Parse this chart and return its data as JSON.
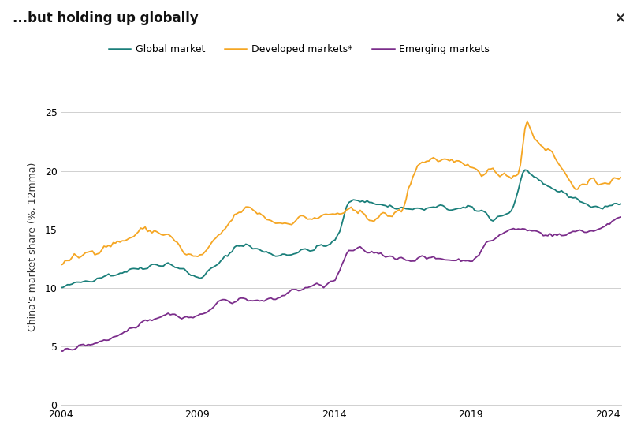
{
  "title": "...but holding up globally",
  "title_fontsize": 12,
  "ylabel": "China's market share (%, 12mma)",
  "ylabel_fontsize": 9,
  "xlim": [
    2004,
    2024.5
  ],
  "ylim": [
    0,
    27
  ],
  "yticks": [
    0,
    5,
    10,
    15,
    20,
    25
  ],
  "xticks": [
    2004,
    2009,
    2014,
    2019,
    2024
  ],
  "colors": {
    "global": "#1a7f7a",
    "developed": "#f5a623",
    "emerging": "#7b2d8b"
  },
  "legend_labels": [
    "Global market",
    "Developed markets*",
    "Emerging markets"
  ],
  "background_color": "#ffffff",
  "grid_color": "#d0d0d0",
  "close_x_label": "×",
  "global_xknots": [
    2004.0,
    2004.5,
    2005.0,
    2005.5,
    2006.0,
    2006.5,
    2007.0,
    2007.5,
    2008.0,
    2008.5,
    2009.0,
    2009.5,
    2010.0,
    2010.5,
    2011.0,
    2011.5,
    2012.0,
    2012.5,
    2013.0,
    2013.5,
    2014.0,
    2014.25,
    2014.5,
    2014.75,
    2015.0,
    2015.5,
    2016.0,
    2016.5,
    2017.0,
    2017.5,
    2018.0,
    2018.5,
    2019.0,
    2019.5,
    2019.8,
    2020.0,
    2020.5,
    2021.0,
    2021.5,
    2022.0,
    2022.5,
    2023.0,
    2023.5,
    2024.0,
    2024.4
  ],
  "global_yknots": [
    10.0,
    10.3,
    10.7,
    11.0,
    11.2,
    11.5,
    11.8,
    12.0,
    12.1,
    11.5,
    10.8,
    11.5,
    12.5,
    13.8,
    13.5,
    13.0,
    12.8,
    13.0,
    13.2,
    13.5,
    13.8,
    15.0,
    17.3,
    17.7,
    17.5,
    17.2,
    17.0,
    16.8,
    16.7,
    16.8,
    16.9,
    16.7,
    16.8,
    16.5,
    15.8,
    16.1,
    16.5,
    20.4,
    18.8,
    18.5,
    18.0,
    17.5,
    16.8,
    17.0,
    17.2
  ],
  "developed_xknots": [
    2004.0,
    2004.5,
    2005.0,
    2005.5,
    2006.0,
    2006.5,
    2007.0,
    2007.5,
    2008.0,
    2008.5,
    2009.0,
    2009.5,
    2010.0,
    2010.5,
    2011.0,
    2011.5,
    2012.0,
    2012.5,
    2013.0,
    2013.5,
    2014.0,
    2014.5,
    2015.0,
    2015.5,
    2016.0,
    2016.5,
    2017.0,
    2017.5,
    2018.0,
    2018.5,
    2019.0,
    2019.5,
    2020.5,
    2020.8,
    2021.0,
    2021.25,
    2021.5,
    2022.0,
    2022.5,
    2023.0,
    2023.5,
    2024.0,
    2024.4
  ],
  "developed_yknots": [
    12.0,
    12.5,
    13.0,
    13.5,
    13.8,
    14.2,
    15.0,
    14.8,
    14.5,
    13.0,
    12.5,
    13.5,
    15.0,
    16.5,
    16.8,
    16.0,
    15.5,
    15.8,
    16.0,
    16.0,
    16.3,
    16.5,
    16.3,
    16.0,
    16.2,
    16.5,
    20.5,
    21.0,
    21.0,
    20.5,
    20.2,
    20.0,
    19.7,
    19.5,
    25.0,
    23.0,
    22.5,
    21.5,
    19.5,
    18.5,
    19.0,
    19.2,
    19.3
  ],
  "emerging_xknots": [
    2004.0,
    2005.0,
    2006.0,
    2006.5,
    2007.0,
    2007.5,
    2008.0,
    2008.5,
    2009.0,
    2009.5,
    2010.0,
    2010.5,
    2011.0,
    2011.5,
    2012.0,
    2012.5,
    2013.0,
    2013.5,
    2014.0,
    2014.25,
    2014.5,
    2015.0,
    2015.5,
    2016.0,
    2016.5,
    2017.0,
    2017.5,
    2018.0,
    2018.5,
    2019.0,
    2019.5,
    2020.0,
    2020.5,
    2021.0,
    2021.5,
    2022.0,
    2022.5,
    2023.0,
    2023.5,
    2024.0,
    2024.4
  ],
  "emerging_yknots": [
    4.6,
    5.2,
    5.8,
    6.5,
    7.2,
    7.5,
    7.8,
    7.5,
    7.5,
    8.2,
    9.0,
    9.0,
    9.0,
    8.8,
    9.2,
    9.8,
    10.0,
    10.2,
    10.5,
    11.5,
    13.2,
    13.2,
    13.0,
    12.8,
    12.5,
    12.5,
    12.5,
    12.5,
    12.4,
    12.3,
    13.5,
    14.5,
    15.0,
    15.0,
    14.8,
    14.5,
    14.5,
    15.0,
    14.8,
    15.5,
    16.0
  ]
}
